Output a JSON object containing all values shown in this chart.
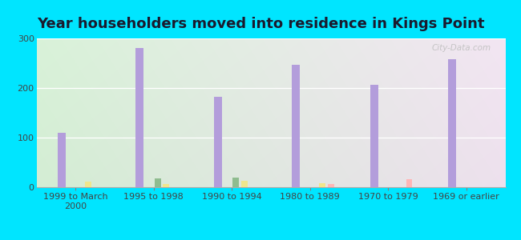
{
  "title": "Year householders moved into residence in Kings Point",
  "categories": [
    "1999 to March\n2000",
    "1995 to 1998",
    "1990 to 1994",
    "1980 to 1989",
    "1970 to 1979",
    "1969 or earlier"
  ],
  "series": {
    "White Non-Hispanic": [
      110,
      281,
      183,
      246,
      206,
      258
    ],
    "Asian": [
      0,
      18,
      19,
      0,
      0,
      0
    ],
    "Two or More Races": [
      11,
      6,
      13,
      8,
      0,
      0
    ],
    "Hispanic or Latino": [
      0,
      0,
      0,
      7,
      16,
      0
    ]
  },
  "colors": {
    "White Non-Hispanic": "#b39ddb",
    "Asian": "#8fbc8f",
    "Two or More Races": "#f0e68c",
    "Hispanic or Latino": "#ffb6b6"
  },
  "legend_colors": {
    "White Non-Hispanic": "#ddb8e8",
    "Asian": "#b8d8b8",
    "Two or More Races": "#f5f0a0",
    "Hispanic or Latino": "#ffcece"
  },
  "ylim": [
    0,
    300
  ],
  "yticks": [
    0,
    100,
    200,
    300
  ],
  "background_color": "#00e5ff",
  "watermark": "City-Data.com",
  "title_fontsize": 13,
  "tick_fontsize": 8,
  "bar_width": 0.1
}
